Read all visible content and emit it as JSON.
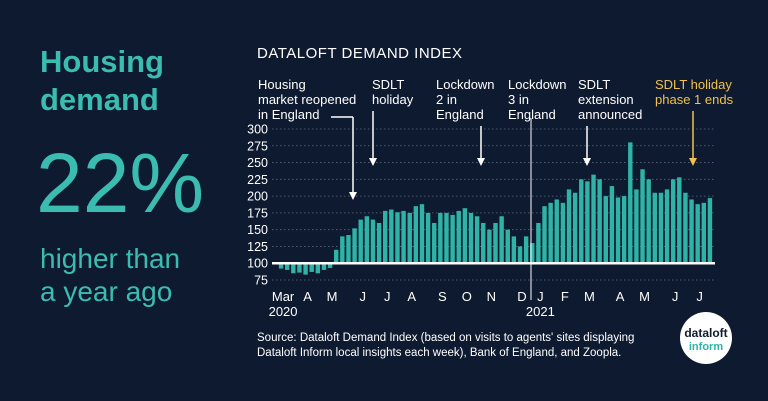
{
  "headline": {
    "title": "Housing\ndemand",
    "figure": "22%",
    "caption": "higher than\na year ago"
  },
  "chart_data": {
    "type": "bar",
    "title": "DATALOFT DEMAND INDEX",
    "color": "#2fb3a6",
    "baseline": 100,
    "categories": [
      "Mar\n2020",
      null,
      null,
      null,
      "A",
      null,
      null,
      null,
      "M",
      null,
      null,
      null,
      null,
      "J",
      null,
      null,
      null,
      "J",
      null,
      null,
      null,
      "A",
      null,
      null,
      null,
      null,
      "S",
      null,
      null,
      null,
      "O",
      null,
      null,
      null,
      "N",
      null,
      null,
      null,
      null,
      "D",
      null,
      null,
      "J\n2021",
      null,
      null,
      null,
      "F",
      null,
      null,
      null,
      "M",
      null,
      null,
      null,
      null,
      "A",
      null,
      null,
      null,
      "M",
      null,
      null,
      null,
      null,
      "J",
      null,
      null,
      null,
      "J",
      null,
      null
    ],
    "values": [
      92,
      90,
      85,
      86,
      83,
      87,
      85,
      90,
      93,
      120,
      140,
      142,
      152,
      165,
      170,
      165,
      160,
      178,
      180,
      176,
      178,
      175,
      185,
      188,
      175,
      160,
      175,
      175,
      172,
      178,
      182,
      175,
      170,
      160,
      150,
      160,
      170,
      150,
      140,
      125,
      140,
      130,
      160,
      185,
      190,
      195,
      190,
      210,
      205,
      225,
      222,
      232,
      225,
      200,
      215,
      198,
      200,
      280,
      210,
      240,
      225,
      205,
      205,
      210,
      225,
      228,
      205,
      195,
      188,
      190,
      197
    ],
    "ylim": [
      75,
      300
    ],
    "yticks": [
      75,
      100,
      125,
      150,
      175,
      200,
      225,
      250,
      275,
      300
    ],
    "grid": true,
    "annotations": [
      {
        "text": "Housing\nmarket reopened\nin England"
      },
      {
        "text": "SDLT\nholiday"
      },
      {
        "text": "Lockdown\n2 in\nEngland"
      },
      {
        "text": "Lockdown\n3 in\nEngland"
      },
      {
        "text": "SDLT\nextension\nannounced"
      },
      {
        "text": "SDLT holiday\nphase 1 ends",
        "color": "#f2c14e"
      }
    ]
  },
  "source": "Source: Dataloft Demand Index (based on visits to agents' sites displaying\nDataloft Inform local insights each week), Bank of England, and Zoopla.",
  "logo": {
    "line1": "dataloft",
    "line2": "inform"
  }
}
